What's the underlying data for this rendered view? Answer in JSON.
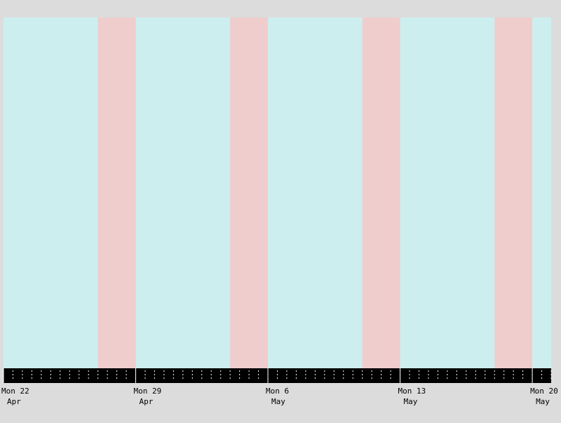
{
  "chart_data": {
    "type": "timeline",
    "x_start": "2024-04-22",
    "x_end": "2024-05-21",
    "x_end_fraction_of_day": 0.0,
    "spans": [
      {
        "start": "2024-04-22",
        "end": "2024-04-27",
        "kind": "weekday"
      },
      {
        "start": "2024-04-27",
        "end": "2024-04-29",
        "kind": "weekend"
      },
      {
        "start": "2024-04-29",
        "end": "2024-05-04",
        "kind": "weekday"
      },
      {
        "start": "2024-05-04",
        "end": "2024-05-06",
        "kind": "weekend"
      },
      {
        "start": "2024-05-06",
        "end": "2024-05-11",
        "kind": "weekday"
      },
      {
        "start": "2024-05-11",
        "end": "2024-05-13",
        "kind": "weekend"
      },
      {
        "start": "2024-05-13",
        "end": "2024-05-18",
        "kind": "weekday"
      },
      {
        "start": "2024-05-18",
        "end": "2024-05-20",
        "kind": "weekend"
      },
      {
        "start": "2024-05-20",
        "end": "2024-05-21",
        "kind": "weekday"
      }
    ],
    "x_ticks": [
      {
        "date": "2024-04-22",
        "line1": "Mon 22",
        "line2": "Apr"
      },
      {
        "date": "2024-04-29",
        "line1": "Mon 29",
        "line2": "Apr"
      },
      {
        "date": "2024-05-06",
        "line1": "Mon 6",
        "line2": "May"
      },
      {
        "date": "2024-05-13",
        "line1": "Mon 13",
        "line2": "May"
      },
      {
        "date": "2024-05-20",
        "line1": "Mon 20",
        "line2": "May"
      }
    ],
    "minor_ticks_per_day": 2,
    "colors": {
      "weekday": "#cdeeee",
      "weekend": "#efcdcd",
      "background": "#dcdcdc",
      "axis_band": "#000000",
      "tick_mark": "#ffffff"
    },
    "title": "",
    "xlabel": "",
    "ylabel": ""
  }
}
